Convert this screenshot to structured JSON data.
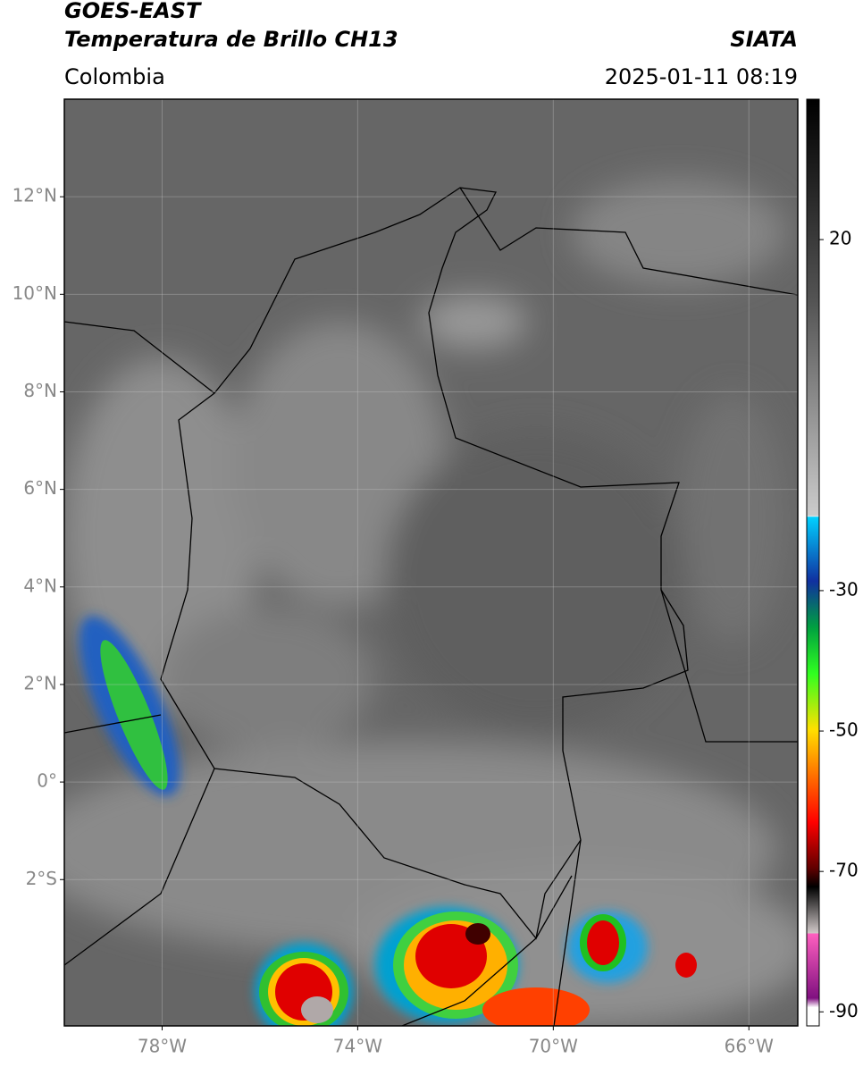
{
  "header": {
    "title": "GOES-EAST",
    "subtitle": "Temperatura de Brillo CH13",
    "region": "Colombia",
    "source": "SIATA",
    "datetime": "2025-01-11 08:19"
  },
  "map": {
    "xlim": [
      -80,
      -65
    ],
    "ylim": [
      -5,
      14
    ],
    "xticks": [
      {
        "value": -78,
        "label": "78°W"
      },
      {
        "value": -74,
        "label": "74°W"
      },
      {
        "value": -70,
        "label": "70°W"
      },
      {
        "value": -66,
        "label": "66°W"
      }
    ],
    "yticks": [
      {
        "value": 12,
        "label": "12°N"
      },
      {
        "value": 10,
        "label": "10°N"
      },
      {
        "value": 8,
        "label": "8°N"
      },
      {
        "value": 6,
        "label": "6°N"
      },
      {
        "value": 4,
        "label": "4°N"
      },
      {
        "value": 2,
        "label": "2°N"
      },
      {
        "value": 0,
        "label": "0°"
      },
      {
        "value": -2,
        "label": "2°S"
      }
    ],
    "grid": true
  },
  "colorbar": {
    "lim": [
      -92,
      40
    ],
    "ticks": [
      20,
      -30,
      -50,
      -70,
      -90
    ]
  }
}
